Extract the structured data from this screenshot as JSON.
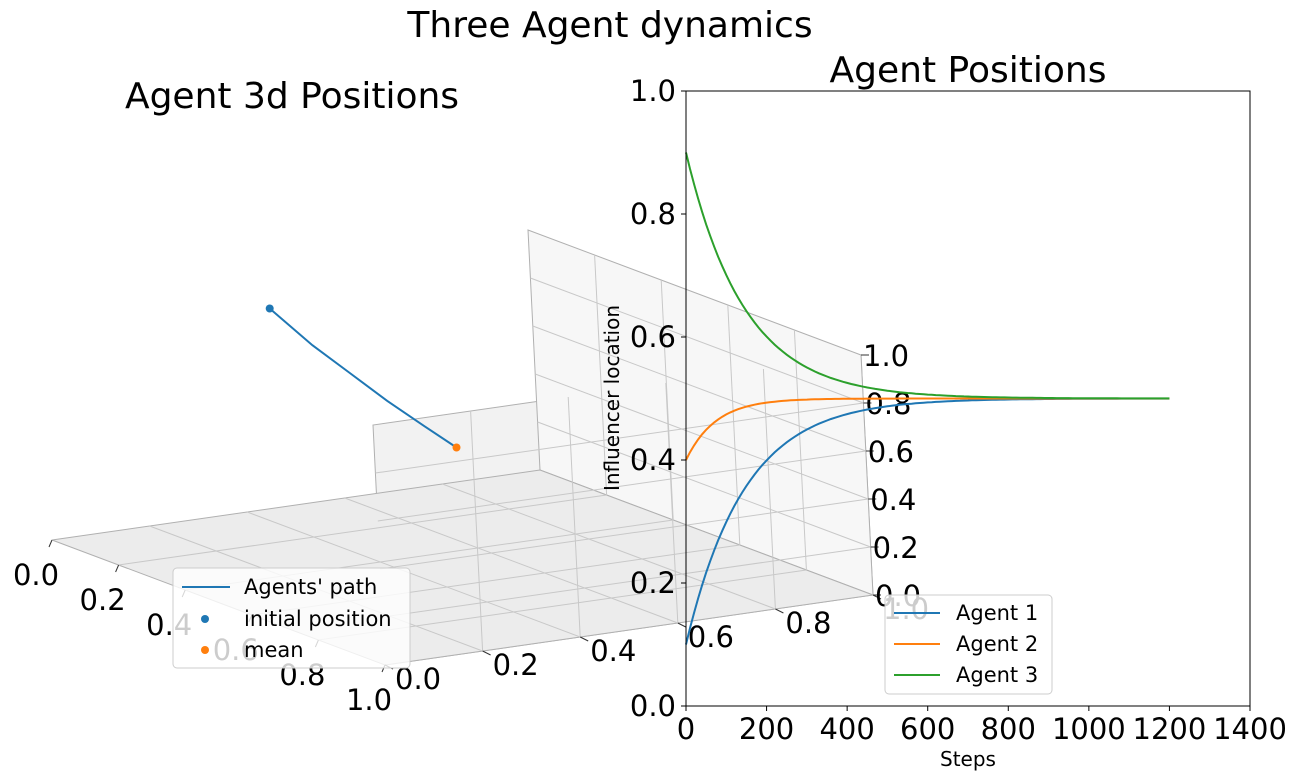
{
  "figure": {
    "suptitle": "Three Agent dynamics"
  },
  "chart_data": [
    {
      "type": "line",
      "subtype": "3d",
      "title": "Agent 3d Positions",
      "xlim": [
        0,
        1
      ],
      "ylim": [
        0,
        1
      ],
      "zlim": [
        0,
        1
      ],
      "x_ticks": [
        "0.0",
        "0.2",
        "0.4",
        "0.6",
        "0.8",
        "1.0"
      ],
      "y_ticks": [
        "0.0",
        "0.2",
        "0.4",
        "0.6",
        "0.8",
        "1.0"
      ],
      "z_ticks": [
        "0.0",
        "0.2",
        "0.4",
        "0.6",
        "0.8",
        "1.0"
      ],
      "grid": true,
      "legend_position": "lower-center",
      "series": [
        {
          "name": "Agents' path",
          "kind": "line",
          "color": "#1f77b4",
          "points": [
            [
              0.1,
              0.4,
              0.9
            ],
            [
              0.18,
              0.43,
              0.78
            ],
            [
              0.26,
              0.45,
              0.7
            ],
            [
              0.34,
              0.47,
              0.62
            ],
            [
              0.42,
              0.49,
              0.55
            ],
            [
              0.5,
              0.5,
              0.5
            ]
          ]
        },
        {
          "name": "initial position",
          "kind": "scatter",
          "color": "#1f77b4",
          "points": [
            [
              0.1,
              0.4,
              0.9
            ]
          ]
        },
        {
          "name": "mean",
          "kind": "scatter",
          "color": "#ff7f0e",
          "points": [
            [
              0.5,
              0.5,
              0.5
            ]
          ]
        }
      ]
    },
    {
      "type": "line",
      "title": "Agent Positions",
      "xlabel": "Steps",
      "ylabel": "Influencer location",
      "xlim": [
        0,
        1400
      ],
      "ylim": [
        0,
        1
      ],
      "x_ticks": [
        0,
        200,
        400,
        600,
        800,
        1000,
        1200,
        1400
      ],
      "y_ticks": [
        0.0,
        0.2,
        0.4,
        0.6,
        0.8,
        1.0
      ],
      "grid": false,
      "legend_position": "lower-center",
      "series": [
        {
          "name": "Agent 1",
          "color": "#1f77b4",
          "start": 0.1,
          "end": 0.5,
          "rate": 0.0069
        },
        {
          "name": "Agent 2",
          "color": "#ff7f0e",
          "start": 0.4,
          "end": 0.5,
          "rate": 0.0135
        },
        {
          "name": "Agent 3",
          "color": "#2ca02c",
          "start": 0.9,
          "end": 0.5,
          "rate": 0.0069
        }
      ],
      "x_end": 1200
    }
  ]
}
